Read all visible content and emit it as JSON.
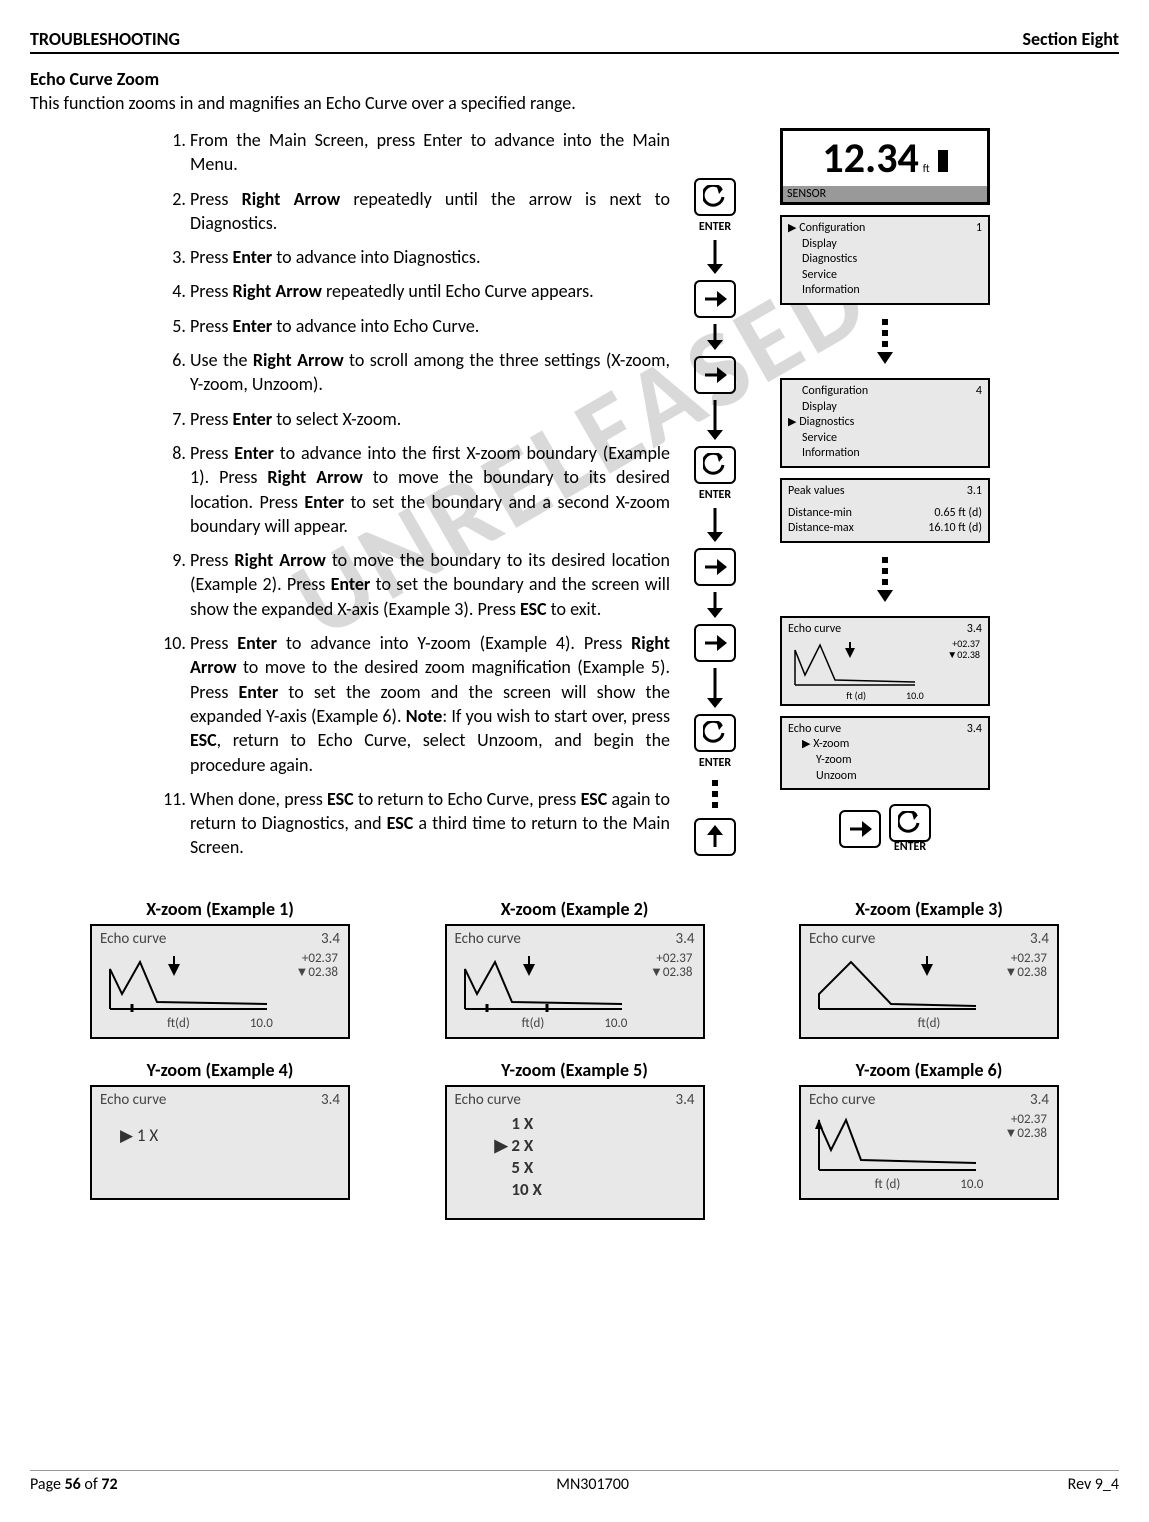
{
  "header": {
    "left": "TROUBLESHOOTING",
    "right": "Section Eight"
  },
  "subtitle": "Echo Curve Zoom",
  "intro": "This function zooms in and magnifies an Echo Curve over a specified range.",
  "steps": [
    "From the Main Screen, press Enter to advance into the Main Menu.",
    "Press <b>Right Arrow</b> repeatedly until the arrow is next to Diagnostics.",
    "Press <b>Enter</b> to advance into Diagnostics.",
    "Press <b>Right Arrow</b> repeatedly until Echo Curve appears.",
    "Press <b>Enter</b> to advance into Echo Curve.",
    "Use the <b>Right Arrow</b> to scroll among the three settings (X-zoom, Y-zoom, Unzoom).",
    "Press <b>Enter</b> to select X-zoom.",
    "Press <b>Enter</b> to advance into the first X-zoom boundary (Example 1).  Press <b>Right Arrow</b> to move the boundary to its desired location. Press <b>Enter</b> to set the boundary and a second X-zoom boundary will appear.",
    "Press <b>Right Arrow</b> to move the boundary to its desired location (Example 2). Press <b>Enter</b> to set the boundary and the screen will show the expanded X-axis (Example 3). Press <b>ESC</b> to exit.",
    "Press <b>Enter</b> to advance into Y-zoom (Example 4). Press <b>Right Arrow</b> to move to the desired zoom magnification (Example 5).  Press <b>Enter</b> to set the zoom and the screen will show the expanded Y-axis (Example 6).  <b>Note</b>:  If you wish to start over, press <b>ESC</b>, return to Echo Curve, select Unzoom, and begin the procedure again.",
    "When done, press <b>ESC</b> to return to Echo Curve, press <b>ESC</b> again to return to Diagnostics, and <b>ESC</b> a third time to return to the Main Screen."
  ],
  "main_screen": {
    "value": "12.34",
    "unit": "ft",
    "sensor": "SENSOR"
  },
  "menu1": {
    "items": [
      "Configuration",
      "Display",
      "Diagnostics",
      "Service",
      "Information"
    ],
    "num": "1"
  },
  "menu2": {
    "items": [
      "Configuration",
      "Display",
      "Diagnostics",
      "Service",
      "Information"
    ],
    "num": "4"
  },
  "peak": {
    "title": "Peak values",
    "num": "3.1",
    "l1": "Distance-min",
    "v1": "0.65 ft (d)",
    "l2": "Distance-max",
    "v2": "16.10 ft (d)"
  },
  "curve_small": {
    "title": "Echo curve",
    "num": "3.4",
    "v1": "+02.37",
    "v2": "▼02.38",
    "axis1": "ft (d)",
    "axis2": "10.0"
  },
  "zoom_menu": {
    "title": "Echo curve",
    "num": "3.4",
    "items": [
      "X-zoom",
      "Y-zoom",
      "Unzoom"
    ]
  },
  "enter_label": "ENTER",
  "examples": {
    "x1": {
      "title": "X-zoom (Example 1)",
      "hdr": "Echo curve",
      "num": "3.4",
      "v1": "+02.37",
      "v2": "▼02.38",
      "ax1": "ft(d)",
      "ax2": "10.0"
    },
    "x2": {
      "title": "X-zoom (Example 2)",
      "hdr": "Echo curve",
      "num": "3.4",
      "v1": "+02.37",
      "v2": "▼02.38",
      "ax1": "ft(d)",
      "ax2": "10.0"
    },
    "x3": {
      "title": "X-zoom (Example 3)",
      "hdr": "Echo curve",
      "num": "3.4",
      "v1": "+02.37",
      "v2": "▼02.38",
      "ax1": "ft(d)",
      "ax2": ""
    },
    "y4": {
      "title": "Y-zoom (Example 4)",
      "hdr": "Echo curve",
      "num": "3.4",
      "items": [
        "1 X"
      ]
    },
    "y5": {
      "title": "Y-zoom (Example 5)",
      "hdr": "Echo curve",
      "num": "3.4",
      "items": [
        "1 X",
        "2 X",
        "5 X",
        "10 X"
      ]
    },
    "y6": {
      "title": "Y-zoom (Example 6)",
      "hdr": "Echo curve",
      "num": "3.4",
      "v1": "+02.37",
      "v2": "▼02.38",
      "ax1": "ft (d)",
      "ax2": "10.0"
    }
  },
  "watermark": "UNRELEASED",
  "footer": {
    "left": "Page <b>56</b> of <b>72</b>",
    "center": "MN301700",
    "right": "Rev 9_4"
  }
}
